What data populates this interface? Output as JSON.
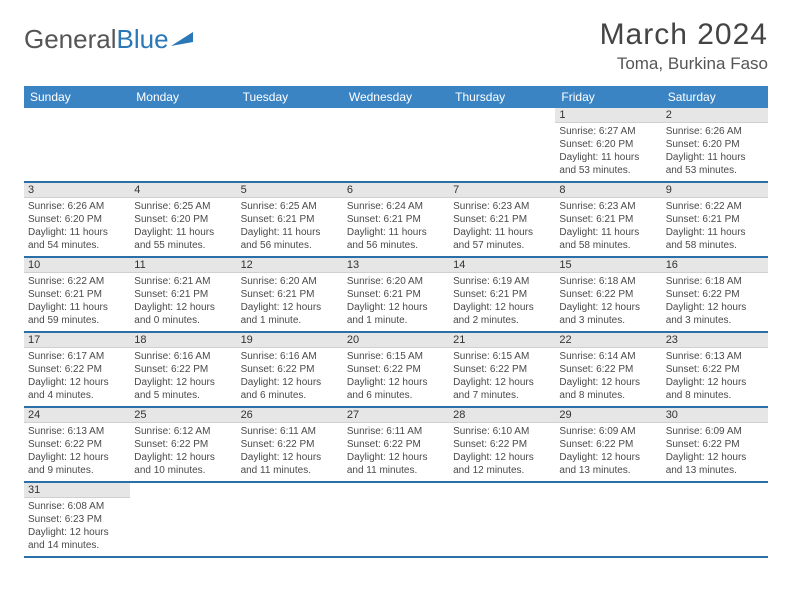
{
  "brand": {
    "part1": "General",
    "part2": "Blue"
  },
  "title": "March 2024",
  "location": "Toma, Burkina Faso",
  "colors": {
    "header_bg": "#3b84c4",
    "row_divider": "#2a6fa8",
    "daynum_bg": "#e6e6e6",
    "text": "#4a4a4a",
    "brand_accent": "#2a78b8"
  },
  "day_headers": [
    "Sunday",
    "Monday",
    "Tuesday",
    "Wednesday",
    "Thursday",
    "Friday",
    "Saturday"
  ],
  "weeks": [
    [
      {
        "blank": true
      },
      {
        "blank": true
      },
      {
        "blank": true
      },
      {
        "blank": true
      },
      {
        "blank": true
      },
      {
        "day": "1",
        "sunrise": "Sunrise: 6:27 AM",
        "sunset": "Sunset: 6:20 PM",
        "daylight1": "Daylight: 11 hours",
        "daylight2": "and 53 minutes."
      },
      {
        "day": "2",
        "sunrise": "Sunrise: 6:26 AM",
        "sunset": "Sunset: 6:20 PM",
        "daylight1": "Daylight: 11 hours",
        "daylight2": "and 53 minutes."
      }
    ],
    [
      {
        "day": "3",
        "sunrise": "Sunrise: 6:26 AM",
        "sunset": "Sunset: 6:20 PM",
        "daylight1": "Daylight: 11 hours",
        "daylight2": "and 54 minutes."
      },
      {
        "day": "4",
        "sunrise": "Sunrise: 6:25 AM",
        "sunset": "Sunset: 6:20 PM",
        "daylight1": "Daylight: 11 hours",
        "daylight2": "and 55 minutes."
      },
      {
        "day": "5",
        "sunrise": "Sunrise: 6:25 AM",
        "sunset": "Sunset: 6:21 PM",
        "daylight1": "Daylight: 11 hours",
        "daylight2": "and 56 minutes."
      },
      {
        "day": "6",
        "sunrise": "Sunrise: 6:24 AM",
        "sunset": "Sunset: 6:21 PM",
        "daylight1": "Daylight: 11 hours",
        "daylight2": "and 56 minutes."
      },
      {
        "day": "7",
        "sunrise": "Sunrise: 6:23 AM",
        "sunset": "Sunset: 6:21 PM",
        "daylight1": "Daylight: 11 hours",
        "daylight2": "and 57 minutes."
      },
      {
        "day": "8",
        "sunrise": "Sunrise: 6:23 AM",
        "sunset": "Sunset: 6:21 PM",
        "daylight1": "Daylight: 11 hours",
        "daylight2": "and 58 minutes."
      },
      {
        "day": "9",
        "sunrise": "Sunrise: 6:22 AM",
        "sunset": "Sunset: 6:21 PM",
        "daylight1": "Daylight: 11 hours",
        "daylight2": "and 58 minutes."
      }
    ],
    [
      {
        "day": "10",
        "sunrise": "Sunrise: 6:22 AM",
        "sunset": "Sunset: 6:21 PM",
        "daylight1": "Daylight: 11 hours",
        "daylight2": "and 59 minutes."
      },
      {
        "day": "11",
        "sunrise": "Sunrise: 6:21 AM",
        "sunset": "Sunset: 6:21 PM",
        "daylight1": "Daylight: 12 hours",
        "daylight2": "and 0 minutes."
      },
      {
        "day": "12",
        "sunrise": "Sunrise: 6:20 AM",
        "sunset": "Sunset: 6:21 PM",
        "daylight1": "Daylight: 12 hours",
        "daylight2": "and 1 minute."
      },
      {
        "day": "13",
        "sunrise": "Sunrise: 6:20 AM",
        "sunset": "Sunset: 6:21 PM",
        "daylight1": "Daylight: 12 hours",
        "daylight2": "and 1 minute."
      },
      {
        "day": "14",
        "sunrise": "Sunrise: 6:19 AM",
        "sunset": "Sunset: 6:21 PM",
        "daylight1": "Daylight: 12 hours",
        "daylight2": "and 2 minutes."
      },
      {
        "day": "15",
        "sunrise": "Sunrise: 6:18 AM",
        "sunset": "Sunset: 6:22 PM",
        "daylight1": "Daylight: 12 hours",
        "daylight2": "and 3 minutes."
      },
      {
        "day": "16",
        "sunrise": "Sunrise: 6:18 AM",
        "sunset": "Sunset: 6:22 PM",
        "daylight1": "Daylight: 12 hours",
        "daylight2": "and 3 minutes."
      }
    ],
    [
      {
        "day": "17",
        "sunrise": "Sunrise: 6:17 AM",
        "sunset": "Sunset: 6:22 PM",
        "daylight1": "Daylight: 12 hours",
        "daylight2": "and 4 minutes."
      },
      {
        "day": "18",
        "sunrise": "Sunrise: 6:16 AM",
        "sunset": "Sunset: 6:22 PM",
        "daylight1": "Daylight: 12 hours",
        "daylight2": "and 5 minutes."
      },
      {
        "day": "19",
        "sunrise": "Sunrise: 6:16 AM",
        "sunset": "Sunset: 6:22 PM",
        "daylight1": "Daylight: 12 hours",
        "daylight2": "and 6 minutes."
      },
      {
        "day": "20",
        "sunrise": "Sunrise: 6:15 AM",
        "sunset": "Sunset: 6:22 PM",
        "daylight1": "Daylight: 12 hours",
        "daylight2": "and 6 minutes."
      },
      {
        "day": "21",
        "sunrise": "Sunrise: 6:15 AM",
        "sunset": "Sunset: 6:22 PM",
        "daylight1": "Daylight: 12 hours",
        "daylight2": "and 7 minutes."
      },
      {
        "day": "22",
        "sunrise": "Sunrise: 6:14 AM",
        "sunset": "Sunset: 6:22 PM",
        "daylight1": "Daylight: 12 hours",
        "daylight2": "and 8 minutes."
      },
      {
        "day": "23",
        "sunrise": "Sunrise: 6:13 AM",
        "sunset": "Sunset: 6:22 PM",
        "daylight1": "Daylight: 12 hours",
        "daylight2": "and 8 minutes."
      }
    ],
    [
      {
        "day": "24",
        "sunrise": "Sunrise: 6:13 AM",
        "sunset": "Sunset: 6:22 PM",
        "daylight1": "Daylight: 12 hours",
        "daylight2": "and 9 minutes."
      },
      {
        "day": "25",
        "sunrise": "Sunrise: 6:12 AM",
        "sunset": "Sunset: 6:22 PM",
        "daylight1": "Daylight: 12 hours",
        "daylight2": "and 10 minutes."
      },
      {
        "day": "26",
        "sunrise": "Sunrise: 6:11 AM",
        "sunset": "Sunset: 6:22 PM",
        "daylight1": "Daylight: 12 hours",
        "daylight2": "and 11 minutes."
      },
      {
        "day": "27",
        "sunrise": "Sunrise: 6:11 AM",
        "sunset": "Sunset: 6:22 PM",
        "daylight1": "Daylight: 12 hours",
        "daylight2": "and 11 minutes."
      },
      {
        "day": "28",
        "sunrise": "Sunrise: 6:10 AM",
        "sunset": "Sunset: 6:22 PM",
        "daylight1": "Daylight: 12 hours",
        "daylight2": "and 12 minutes."
      },
      {
        "day": "29",
        "sunrise": "Sunrise: 6:09 AM",
        "sunset": "Sunset: 6:22 PM",
        "daylight1": "Daylight: 12 hours",
        "daylight2": "and 13 minutes."
      },
      {
        "day": "30",
        "sunrise": "Sunrise: 6:09 AM",
        "sunset": "Sunset: 6:22 PM",
        "daylight1": "Daylight: 12 hours",
        "daylight2": "and 13 minutes."
      }
    ],
    [
      {
        "day": "31",
        "sunrise": "Sunrise: 6:08 AM",
        "sunset": "Sunset: 6:23 PM",
        "daylight1": "Daylight: 12 hours",
        "daylight2": "and 14 minutes."
      },
      {
        "blank": true
      },
      {
        "blank": true
      },
      {
        "blank": true
      },
      {
        "blank": true
      },
      {
        "blank": true
      },
      {
        "blank": true
      }
    ]
  ]
}
